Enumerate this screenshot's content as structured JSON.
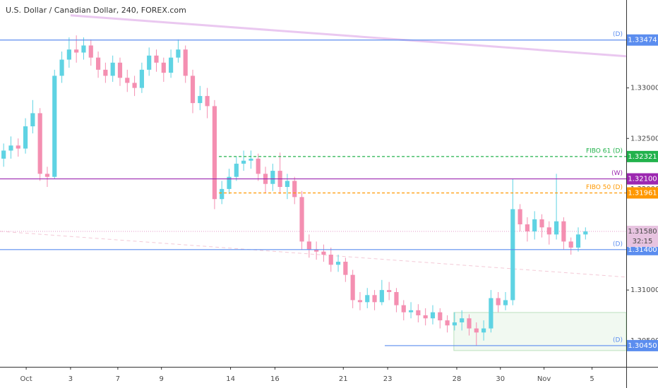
{
  "chart_data": {
    "type": "candlestick",
    "title": "U.S. Dollar / Canadian Dollar, 240, FOREX.com",
    "up_color": "#5fd3e3",
    "down_color": "#f48fb1",
    "xlim": [
      -0.5,
      85.6
    ],
    "ylim": [
      1.3024,
      1.3387
    ],
    "xticks": [
      {
        "value": 3.1,
        "label": "Oct"
      },
      {
        "value": 9.2,
        "label": "3"
      },
      {
        "value": 15.7,
        "label": "7"
      },
      {
        "value": 21.7,
        "label": "9"
      },
      {
        "value": 31.2,
        "label": "14"
      },
      {
        "value": 37.3,
        "label": "16"
      },
      {
        "value": 46.7,
        "label": "21"
      },
      {
        "value": 52.8,
        "label": "23"
      },
      {
        "value": 62.3,
        "label": "28"
      },
      {
        "value": 68.3,
        "label": "30"
      },
      {
        "value": 74.3,
        "label": "Nov"
      },
      {
        "value": 80.9,
        "label": "5"
      }
    ],
    "yticks": [
      {
        "value": 1.305,
        "label": "1.30500"
      },
      {
        "value": 1.31,
        "label": "1.31000"
      },
      {
        "value": 1.315,
        "label": "1.31500"
      },
      {
        "value": 1.32,
        "label": "1.32000"
      },
      {
        "value": 1.325,
        "label": "1.32500"
      },
      {
        "value": 1.33,
        "label": "1.33000"
      }
    ],
    "candles": {
      "open": [
        1.323,
        1.3238,
        1.3243,
        1.324,
        1.3262,
        1.3275,
        1.3215,
        1.3212,
        1.3312,
        1.3328,
        1.3338,
        1.3335,
        1.3342,
        1.333,
        1.3318,
        1.3312,
        1.3325,
        1.331,
        1.3305,
        1.33,
        1.3318,
        1.3332,
        1.3325,
        1.3315,
        1.333,
        1.3338,
        1.3312,
        1.3285,
        1.3292,
        1.3282,
        1.319,
        1.32,
        1.3212,
        1.3225,
        1.3228,
        1.323,
        1.3215,
        1.3205,
        1.3218,
        1.3202,
        1.3208,
        1.3192,
        1.3148,
        1.314,
        1.3138,
        1.3135,
        1.3125,
        1.3128,
        1.3115,
        1.309,
        1.3088,
        1.3095,
        1.3088,
        1.31,
        1.3098,
        1.3085,
        1.3078,
        1.308,
        1.3075,
        1.3072,
        1.3078,
        1.307,
        1.3065,
        1.3068,
        1.3072,
        1.3062,
        1.3058,
        1.3062,
        1.3092,
        1.3085,
        1.309,
        1.318,
        1.3165,
        1.3158,
        1.317,
        1.3162,
        1.3155,
        1.3168,
        1.3148,
        1.3142,
        1.3155
      ],
      "high": [
        1.3245,
        1.3252,
        1.325,
        1.327,
        1.3288,
        1.328,
        1.3222,
        1.3318,
        1.3336,
        1.335,
        1.3352,
        1.335,
        1.3348,
        1.3336,
        1.3325,
        1.3332,
        1.333,
        1.3318,
        1.3312,
        1.3325,
        1.334,
        1.3338,
        1.333,
        1.3338,
        1.3348,
        1.3342,
        1.3318,
        1.3302,
        1.33,
        1.3288,
        1.3208,
        1.322,
        1.3232,
        1.3238,
        1.3238,
        1.3235,
        1.3222,
        1.3225,
        1.3236,
        1.3215,
        1.3212,
        1.3198,
        1.3155,
        1.3148,
        1.3145,
        1.3142,
        1.3135,
        1.3132,
        1.312,
        1.3098,
        1.3102,
        1.31,
        1.311,
        1.3108,
        1.3102,
        1.309,
        1.3088,
        1.3086,
        1.3082,
        1.3085,
        1.3082,
        1.3075,
        1.3078,
        1.308,
        1.3076,
        1.3068,
        1.307,
        1.31,
        1.3098,
        1.3098,
        1.321,
        1.3185,
        1.3172,
        1.3178,
        1.3175,
        1.3168,
        1.3215,
        1.3172,
        1.3152,
        1.3162,
        1.3162
      ],
      "low": [
        1.3222,
        1.323,
        1.3232,
        1.3235,
        1.3255,
        1.3208,
        1.3202,
        1.321,
        1.3305,
        1.332,
        1.3325,
        1.3328,
        1.3322,
        1.331,
        1.3305,
        1.3306,
        1.3302,
        1.3296,
        1.3292,
        1.3295,
        1.3312,
        1.3316,
        1.3306,
        1.331,
        1.3325,
        1.3305,
        1.3275,
        1.3278,
        1.327,
        1.318,
        1.3185,
        1.3195,
        1.3208,
        1.3218,
        1.322,
        1.3208,
        1.3196,
        1.3198,
        1.3195,
        1.319,
        1.3185,
        1.314,
        1.3132,
        1.313,
        1.3128,
        1.3118,
        1.3118,
        1.3108,
        1.3082,
        1.308,
        1.3082,
        1.308,
        1.3085,
        1.309,
        1.3078,
        1.307,
        1.3072,
        1.3068,
        1.3065,
        1.3066,
        1.3062,
        1.3058,
        1.306,
        1.306,
        1.3055,
        1.3045,
        1.305,
        1.3058,
        1.3078,
        1.308,
        1.3085,
        1.3158,
        1.3148,
        1.315,
        1.3152,
        1.3145,
        1.315,
        1.314,
        1.3135,
        1.3138,
        1.315
      ],
      "close": [
        1.3238,
        1.3243,
        1.324,
        1.3262,
        1.3275,
        1.3215,
        1.3212,
        1.3312,
        1.3328,
        1.3338,
        1.3335,
        1.3342,
        1.333,
        1.3318,
        1.3312,
        1.3325,
        1.331,
        1.3305,
        1.33,
        1.3318,
        1.3332,
        1.3325,
        1.3315,
        1.333,
        1.3338,
        1.3312,
        1.3285,
        1.3292,
        1.3282,
        1.319,
        1.32,
        1.3212,
        1.3225,
        1.3228,
        1.323,
        1.3215,
        1.3205,
        1.3218,
        1.3202,
        1.3208,
        1.3192,
        1.3148,
        1.314,
        1.3138,
        1.3135,
        1.3125,
        1.3128,
        1.3115,
        1.309,
        1.3088,
        1.3095,
        1.3088,
        1.31,
        1.3098,
        1.3085,
        1.3078,
        1.308,
        1.3075,
        1.3072,
        1.3078,
        1.307,
        1.3065,
        1.3068,
        1.3072,
        1.3062,
        1.3058,
        1.3062,
        1.3092,
        1.3085,
        1.309,
        1.318,
        1.3165,
        1.3158,
        1.317,
        1.3162,
        1.3155,
        1.3168,
        1.3148,
        1.3142,
        1.3155,
        1.3158
      ]
    },
    "levels": [
      {
        "value": 1.33474,
        "label": "1.33474",
        "note": "(D)",
        "color": "#5b8def",
        "dashed": false,
        "from": -0.5
      },
      {
        "value": 1.32321,
        "label": "1.32321",
        "note": "FIBO 61 (D)",
        "color": "#22b24c",
        "dashed": true,
        "from": 29.6
      },
      {
        "value": 1.321,
        "label": "1.32100",
        "note": "(W)",
        "color": "#9c27b0",
        "dashed": false,
        "from": -0.5
      },
      {
        "value": 1.31961,
        "label": "1.31961",
        "note": "FIBO 50 (D)",
        "color": "#ff9800",
        "dashed": true,
        "from": 29.6
      },
      {
        "value": 1.314,
        "label": "1.31400",
        "note": "(D)",
        "color": "#5b8def",
        "dashed": false,
        "from": -0.5
      },
      {
        "value": 1.3045,
        "label": "1.30450",
        "note": "(D)",
        "color": "#5b8def",
        "dashed": false,
        "from": 52.4
      }
    ],
    "current": {
      "value": 1.3158,
      "label": "1.31580",
      "countdown": "32:15",
      "color": "#e7c3e0"
    },
    "trendlines": [
      {
        "x": [
          9.2,
          85.6
        ],
        "y": [
          1.33718,
          1.33313
        ],
        "color": "#eac8f0",
        "width": 3,
        "dashed": false
      },
      {
        "x": [
          -0.5,
          85.6
        ],
        "y": [
          1.31581,
          1.31128
        ],
        "color": "#f3c9d6",
        "width": 1,
        "dashed": true
      }
    ],
    "zone": {
      "x": [
        61.9,
        85.6
      ],
      "y": [
        1.30401,
        1.30778
      ],
      "color": "#4caf50"
    }
  }
}
